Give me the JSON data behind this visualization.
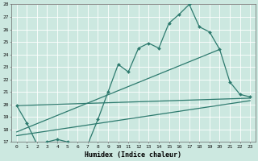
{
  "xlabel": "Humidex (Indice chaleur)",
  "bg_color": "#cce8e0",
  "grid_color": "#ffffff",
  "line_color": "#2d7a6e",
  "xlim": [
    -0.5,
    23.5
  ],
  "ylim": [
    17,
    28
  ],
  "xticks": [
    0,
    1,
    2,
    3,
    4,
    5,
    6,
    7,
    8,
    9,
    10,
    11,
    12,
    13,
    14,
    15,
    16,
    17,
    18,
    19,
    20,
    21,
    22,
    23
  ],
  "yticks": [
    17,
    18,
    19,
    20,
    21,
    22,
    23,
    24,
    25,
    26,
    27,
    28
  ],
  "line1_x": [
    0,
    1,
    2,
    3,
    4,
    5,
    6,
    7,
    8,
    9,
    10,
    11,
    12,
    13,
    14,
    15,
    16,
    17,
    18,
    19,
    20,
    21,
    22,
    23
  ],
  "line1_y": [
    19.9,
    18.5,
    16.8,
    17.0,
    17.2,
    17.0,
    16.8,
    16.8,
    18.8,
    21.0,
    23.2,
    22.6,
    24.5,
    24.9,
    24.5,
    26.5,
    27.2,
    28.0,
    26.2,
    25.8,
    24.4,
    21.8,
    20.8,
    20.6
  ],
  "line2_x": [
    0,
    23
  ],
  "line2_y": [
    17.5,
    20.3
  ],
  "line3_x": [
    0,
    23
  ],
  "line3_y": [
    19.9,
    20.5
  ],
  "line4_x": [
    0,
    20
  ],
  "line4_y": [
    17.8,
    24.4
  ]
}
